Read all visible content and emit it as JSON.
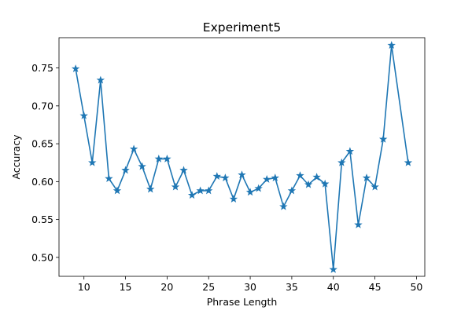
{
  "chart_data": {
    "type": "line",
    "title": "Experiment5",
    "xlabel": "Phrase Length",
    "ylabel": "Accuracy",
    "xlim": [
      7,
      51
    ],
    "ylim": [
      0.475,
      0.79
    ],
    "xticks": [
      10,
      15,
      20,
      25,
      30,
      35,
      40,
      45,
      50
    ],
    "xtick_labels": [
      "10",
      "15",
      "20",
      "25",
      "30",
      "35",
      "40",
      "45",
      "50"
    ],
    "yticks": [
      0.5,
      0.55,
      0.6,
      0.65,
      0.7,
      0.75
    ],
    "ytick_labels": [
      "0.50",
      "0.55",
      "0.60",
      "0.65",
      "0.70",
      "0.75"
    ],
    "grid": false,
    "marker": "star",
    "color": "#1f77b4",
    "x": [
      9,
      10,
      11,
      12,
      13,
      14,
      15,
      16,
      17,
      18,
      19,
      20,
      21,
      22,
      23,
      24,
      25,
      26,
      27,
      28,
      29,
      30,
      31,
      32,
      33,
      34,
      35,
      36,
      37,
      38,
      39,
      40,
      41,
      42,
      43,
      44,
      45,
      46,
      47,
      49
    ],
    "y": [
      0.749,
      0.687,
      0.625,
      0.734,
      0.604,
      0.588,
      0.615,
      0.643,
      0.62,
      0.59,
      0.63,
      0.63,
      0.593,
      0.615,
      0.582,
      0.588,
      0.588,
      0.607,
      0.605,
      0.577,
      0.609,
      0.586,
      0.591,
      0.603,
      0.605,
      0.567,
      0.588,
      0.608,
      0.596,
      0.606,
      0.597,
      0.484,
      0.625,
      0.64,
      0.543,
      0.605,
      0.593,
      0.656,
      0.78,
      0.625
    ]
  }
}
